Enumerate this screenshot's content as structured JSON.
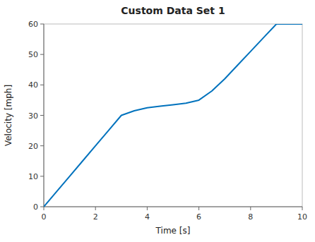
{
  "chart_data": {
    "type": "line",
    "title": "Custom Data Set 1",
    "xlabel": "Time [s]",
    "ylabel": "Velocity [mph]",
    "x": [
      0,
      0.5,
      1,
      1.5,
      2,
      2.5,
      3,
      3.5,
      4,
      4.5,
      5,
      5.5,
      6,
      6.5,
      7,
      7.5,
      8,
      8.5,
      9,
      9.5,
      10
    ],
    "values": [
      0,
      5,
      10,
      15,
      20,
      25,
      30,
      31.5,
      32.5,
      33,
      33.5,
      34,
      35,
      38,
      42,
      46.5,
      51,
      55.5,
      60,
      60,
      60
    ],
    "color": "#0072BD",
    "xlim": [
      0,
      10
    ],
    "ylim": [
      0,
      60
    ],
    "xticks": [
      0,
      2,
      4,
      6,
      8,
      10
    ],
    "yticks": [
      0,
      10,
      20,
      30,
      40,
      50,
      60
    ],
    "grid": false
  }
}
